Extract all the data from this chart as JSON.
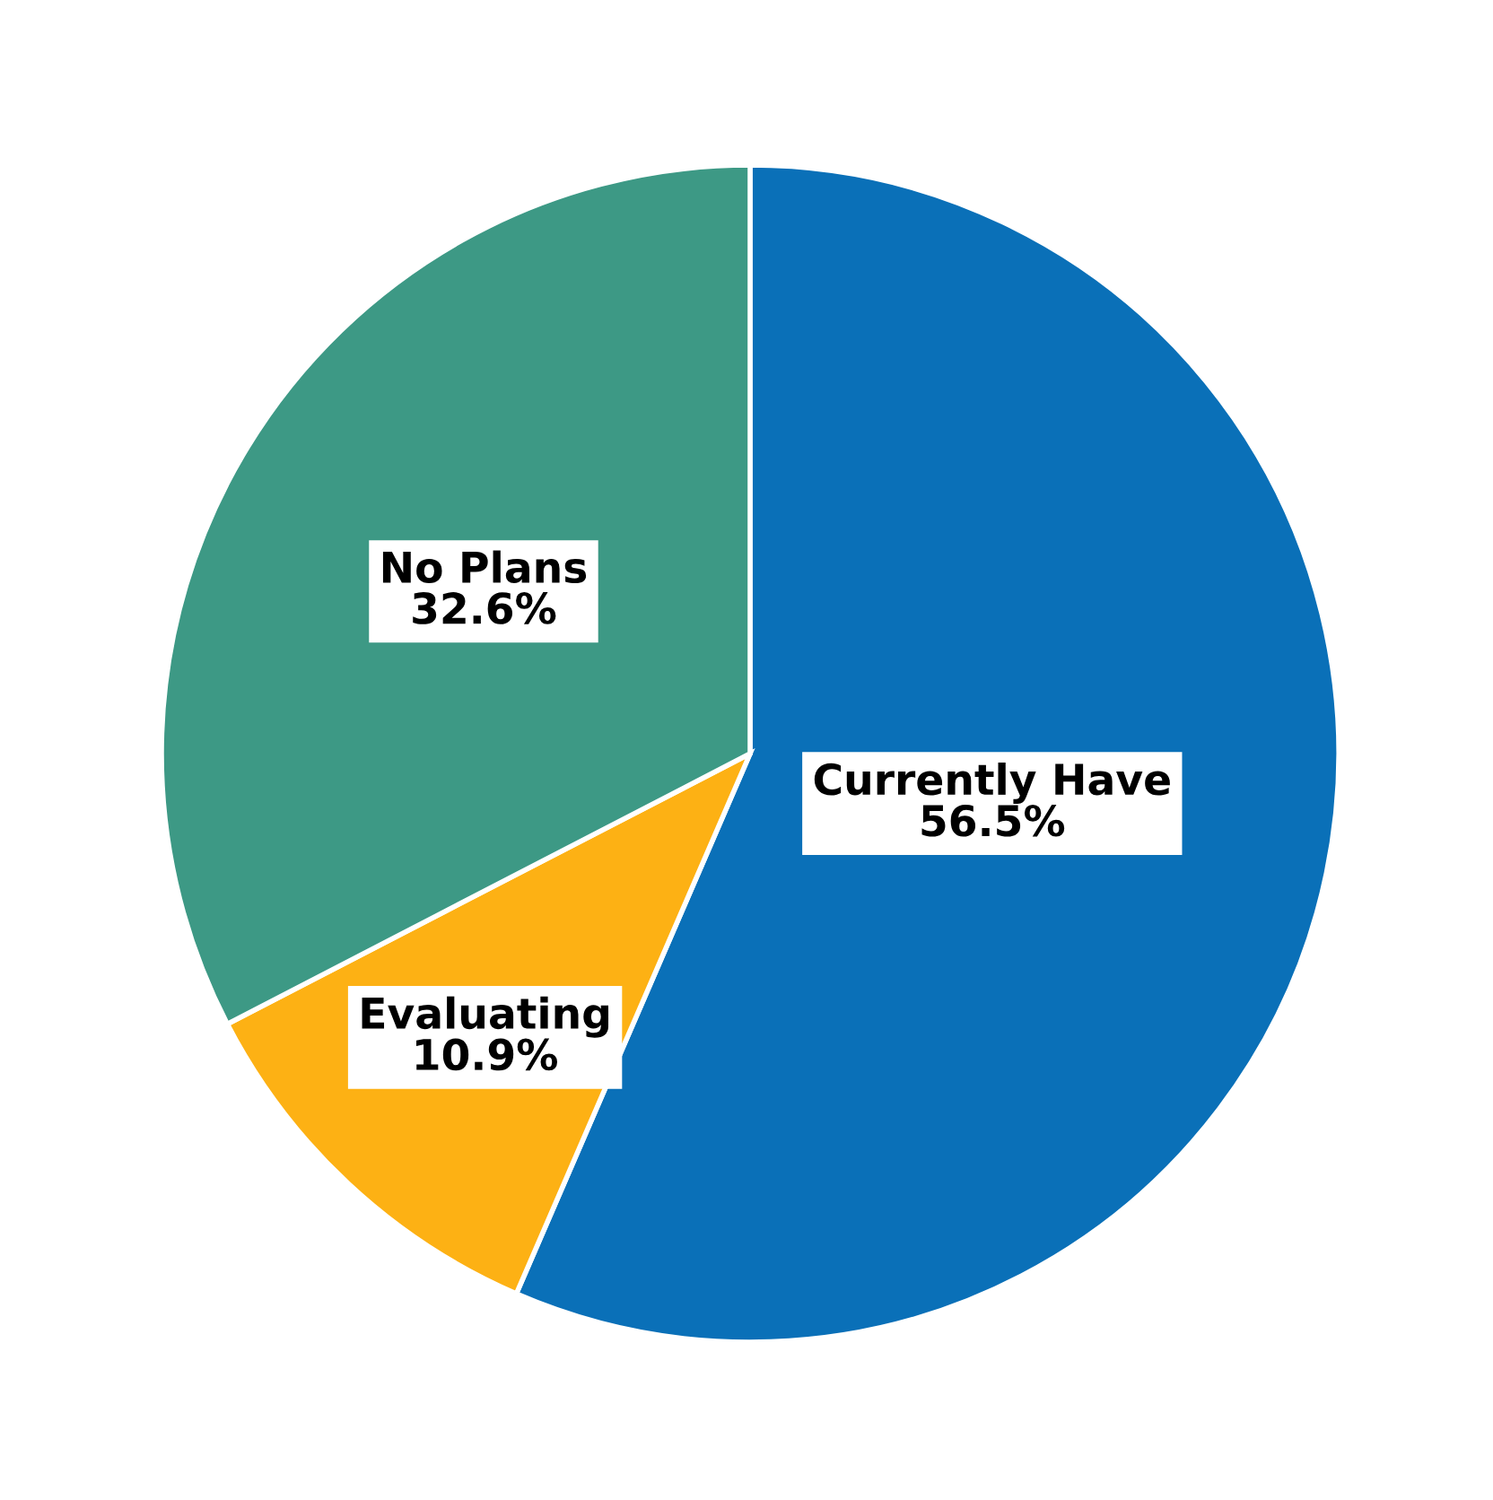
{
  "chart_data": {
    "type": "pie",
    "categories": [
      "Currently Have",
      "Evaluating",
      "No Plans"
    ],
    "values": [
      56.5,
      10.9,
      32.6
    ],
    "value_labels": [
      "56.5%",
      "10.9%",
      "32.6%"
    ],
    "colors": [
      "#0a70b8",
      "#fdb114",
      "#3d9985"
    ],
    "legend": false
  }
}
